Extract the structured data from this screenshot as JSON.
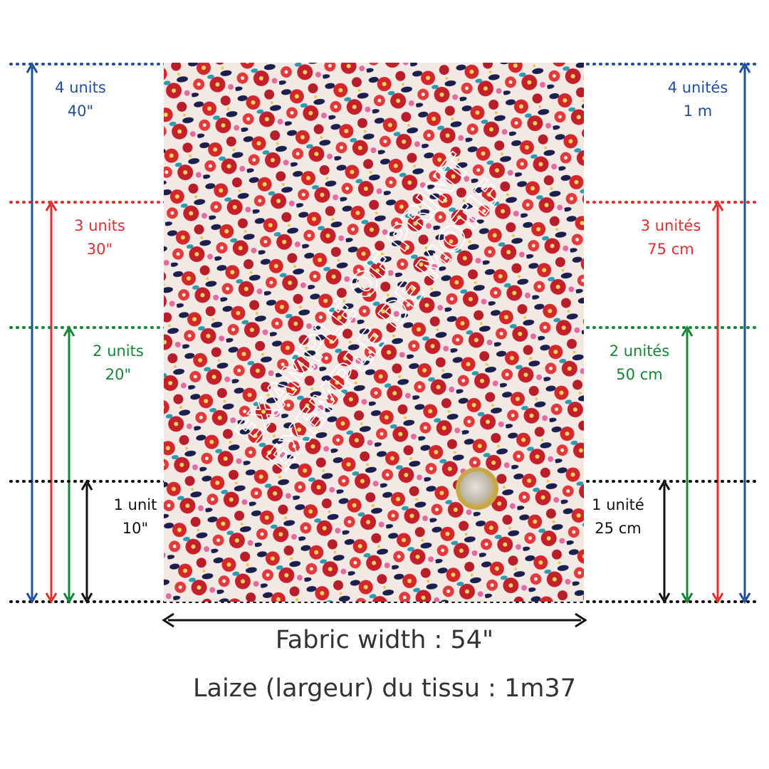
{
  "levels": [
    {
      "color": "#1f4e9c",
      "left": {
        "units": "4 units",
        "size": "40\""
      },
      "right": {
        "units": "4 unités",
        "size": "1 m"
      }
    },
    {
      "color": "#e0302e",
      "left": {
        "units": "3 units",
        "size": "30\""
      },
      "right": {
        "units": "3 unités",
        "size": "75 cm"
      }
    },
    {
      "color": "#17843a",
      "left": {
        "units": "2 units",
        "size": "20\""
      },
      "right": {
        "units": "2 unités",
        "size": "50 cm"
      }
    },
    {
      "color": "#111111",
      "left": {
        "units": "1 unit",
        "size": "10\""
      },
      "right": {
        "units": "1 unité",
        "size": "25 cm"
      }
    }
  ],
  "watermark": [
    "EXAMPLE OF PRINT",
    "EXEMPLE DE MOTIF"
  ],
  "width_en": "Fabric width : 54\"",
  "width_fr": "Laize (largeur) du tissu : 1m37"
}
